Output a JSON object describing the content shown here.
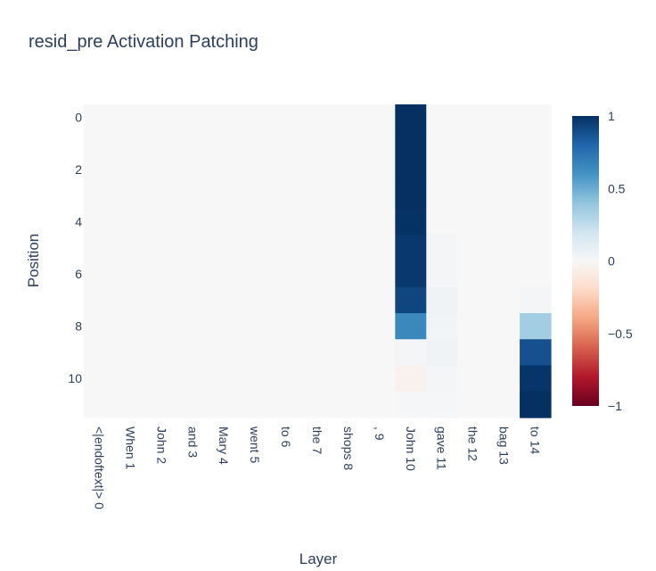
{
  "chart_data": {
    "type": "heatmap",
    "title": "resid_pre Activation Patching",
    "xlabel": "Layer",
    "ylabel": "Position",
    "x_categories": [
      "<|endoftext|> 0",
      "When 1",
      "John 2",
      "and 3",
      "Mary 4",
      "went 5",
      "to 6",
      "the 7",
      "shops 8",
      ", 9",
      "John 10",
      "gave 11",
      "the 12",
      "bag 13",
      "to 14"
    ],
    "y_categories": [
      0,
      1,
      2,
      3,
      4,
      5,
      6,
      7,
      8,
      9,
      10,
      11
    ],
    "y_tick_labels": [
      "0",
      "2",
      "4",
      "6",
      "8",
      "10"
    ],
    "y_tick_values": [
      0,
      2,
      4,
      6,
      8,
      10
    ],
    "values": [
      [
        0,
        0,
        0,
        0,
        0,
        0,
        0,
        0,
        0,
        0,
        1.0,
        0,
        0,
        0,
        0
      ],
      [
        0,
        0,
        0,
        0,
        0,
        0,
        0,
        0,
        0,
        0,
        1.0,
        0,
        0,
        0,
        0
      ],
      [
        0,
        0,
        0,
        0,
        0,
        0,
        0,
        0,
        0,
        0,
        1.0,
        0,
        0,
        0,
        0
      ],
      [
        0,
        0,
        0,
        0,
        0,
        0,
        0,
        0,
        0,
        0,
        1.0,
        0,
        0,
        0,
        0
      ],
      [
        0,
        0,
        0,
        0,
        0,
        0,
        0,
        0,
        0,
        0,
        0.99,
        0,
        0,
        0,
        0
      ],
      [
        0,
        0,
        0,
        0,
        0,
        0,
        0,
        0,
        0,
        0,
        0.97,
        0.02,
        0,
        0,
        0
      ],
      [
        0,
        0,
        0,
        0,
        0,
        0,
        0,
        0,
        0,
        0,
        0.97,
        0.02,
        0,
        0,
        0
      ],
      [
        0,
        0,
        0,
        0,
        0,
        0,
        0,
        0,
        0,
        0,
        0.92,
        0.04,
        0,
        0,
        0.02
      ],
      [
        0,
        0,
        0,
        0,
        0,
        0,
        0,
        0,
        0,
        0,
        0.65,
        0.03,
        0,
        0,
        0.35
      ],
      [
        0,
        0,
        0,
        0,
        0,
        0,
        0,
        0,
        0,
        0,
        0.02,
        0.04,
        0,
        0,
        0.88
      ],
      [
        0,
        0,
        0,
        0,
        0,
        0,
        0,
        0,
        0,
        0,
        -0.04,
        0.02,
        0,
        0,
        0.98
      ],
      [
        0,
        0,
        0,
        0,
        0,
        0,
        0,
        0,
        0,
        0,
        0.01,
        0.01,
        0,
        0,
        1.0
      ]
    ],
    "zlim": [
      -1,
      1
    ],
    "colorscale": "RdBu",
    "colorbar_ticks": [
      "1",
      "0.5",
      "0",
      "−0.5",
      "−1"
    ],
    "colorbar_tick_values": [
      1,
      0.5,
      0,
      -0.5,
      -1
    ]
  }
}
